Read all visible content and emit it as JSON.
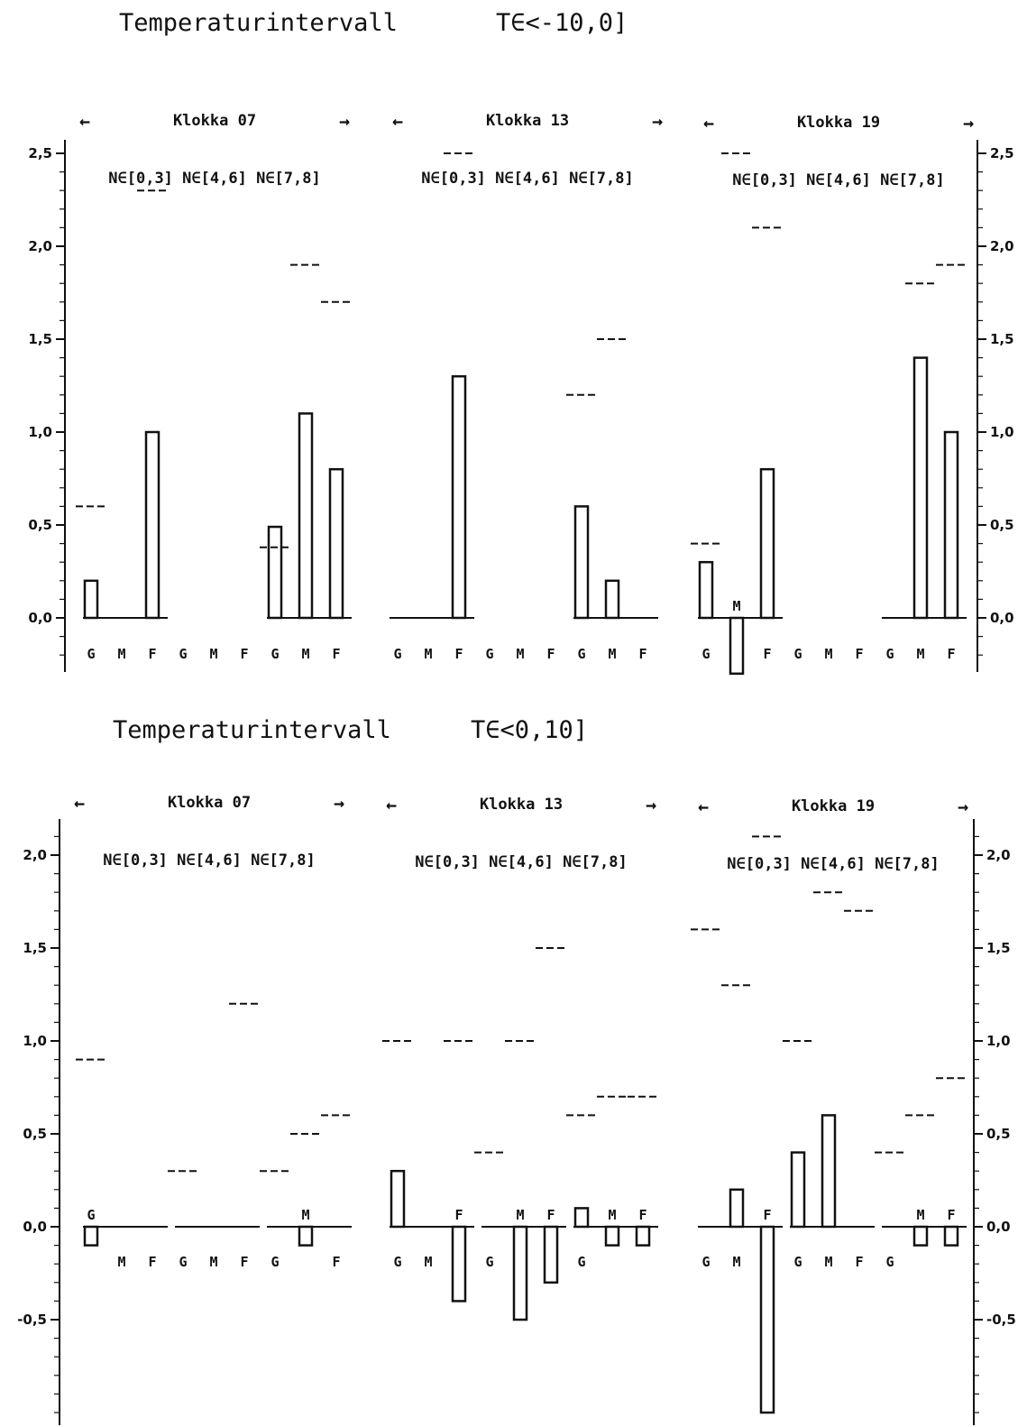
{
  "chart_data": [
    {
      "type": "bar",
      "title": "Temperaturintervall",
      "interval_label": "T∈<-10,0]",
      "ylim": [
        -0.25,
        2.5
      ],
      "yticks": [
        "2,5",
        "2,0",
        "1,5",
        "1,0",
        "0,5",
        "0,0"
      ],
      "ytick_values": [
        2.5,
        2.0,
        1.5,
        1.0,
        0.5,
        0.0
      ],
      "grid": false,
      "groups": [
        {
          "clock_label": "Klokka 07",
          "arrow_left": "←",
          "arrow_right": "→",
          "n_labels": [
            "N∈[0,3]",
            "N∈[4,6]",
            "N∈[7,8]"
          ],
          "categories": [
            "G",
            "M",
            "F",
            "G",
            "M",
            "F",
            "G",
            "M",
            "F"
          ],
          "values": [
            0.2,
            null,
            1.0,
            null,
            null,
            null,
            0.49,
            1.1,
            0.8
          ],
          "dashes": [
            0.6,
            null,
            2.3,
            null,
            null,
            null,
            0.38,
            1.9,
            1.7
          ]
        },
        {
          "clock_label": "Klokka 13",
          "arrow_left": "←",
          "arrow_right": "→",
          "n_labels": [
            "N∈[0,3]",
            "N∈[4,6]",
            "N∈[7,8]"
          ],
          "categories": [
            "G",
            "M",
            "F",
            "G",
            "M",
            "F",
            "G",
            "M",
            "F"
          ],
          "values": [
            null,
            null,
            1.3,
            null,
            null,
            null,
            0.6,
            0.2,
            null
          ],
          "dashes": [
            null,
            null,
            2.5,
            null,
            null,
            null,
            1.2,
            1.5,
            null
          ]
        },
        {
          "clock_label": "Klokka 19",
          "arrow_left": "←",
          "arrow_right": "→",
          "n_labels": [
            "N∈[0,3]",
            "N∈[4,6]",
            "N∈[7,8]"
          ],
          "categories": [
            "G",
            "M",
            "F",
            "G",
            "M",
            "F",
            "G",
            "M",
            "F"
          ],
          "values": [
            0.3,
            -0.3,
            0.8,
            null,
            null,
            null,
            null,
            1.4,
            1.0
          ],
          "dashes": [
            0.4,
            2.5,
            2.1,
            null,
            null,
            null,
            null,
            1.8,
            1.9
          ]
        }
      ]
    },
    {
      "type": "bar",
      "title": "Temperaturintervall",
      "interval_label": "T∈<0,10]",
      "ylim": [
        -1.0,
        2.2
      ],
      "yticks": [
        "2,0",
        "1,5",
        "1,0",
        "0,5",
        "0,0",
        "-0,5"
      ],
      "ytick_values": [
        2.0,
        1.5,
        1.0,
        0.5,
        0.0,
        -0.5
      ],
      "grid": false,
      "groups": [
        {
          "clock_label": "Klokka 07",
          "arrow_left": "←",
          "arrow_right": "→",
          "n_labels": [
            "N∈[0,3]",
            "N∈[4,6]",
            "N∈[7,8]"
          ],
          "categories": [
            "G",
            "M",
            "F",
            "G",
            "M",
            "F",
            "G",
            "M",
            "F"
          ],
          "values": [
            -0.1,
            null,
            null,
            0.0,
            null,
            0.0,
            0.0,
            -0.1,
            0.0
          ],
          "dashes": [
            0.9,
            null,
            null,
            0.3,
            null,
            1.2,
            0.3,
            0.5,
            0.6
          ]
        },
        {
          "clock_label": "Klokka 13",
          "arrow_left": "←",
          "arrow_right": "→",
          "n_labels": [
            "N∈[0,3]",
            "N∈[4,6]",
            "N∈[7,8]"
          ],
          "categories": [
            "G",
            "M",
            "F",
            "G",
            "M",
            "F",
            "G",
            "M",
            "F"
          ],
          "values": [
            0.3,
            null,
            -0.4,
            0.0,
            -0.5,
            -0.3,
            0.1,
            -0.1,
            -0.1
          ],
          "dashes": [
            1.0,
            null,
            1.0,
            0.4,
            1.0,
            1.5,
            0.6,
            0.7,
            0.7
          ]
        },
        {
          "clock_label": "Klokka 19",
          "arrow_left": "←",
          "arrow_right": "→",
          "n_labels": [
            "N∈[0,3]",
            "N∈[4,6]",
            "N∈[7,8]"
          ],
          "categories": [
            "G",
            "M",
            "F",
            "G",
            "M",
            "F",
            "G",
            "M",
            "F"
          ],
          "values": [
            0.0,
            0.2,
            -1.0,
            0.4,
            0.6,
            0.0,
            0.0,
            -0.1,
            -0.1
          ],
          "dashes": [
            1.6,
            1.3,
            2.1,
            1.0,
            1.8,
            1.7,
            0.4,
            0.6,
            0.8
          ]
        }
      ]
    }
  ]
}
